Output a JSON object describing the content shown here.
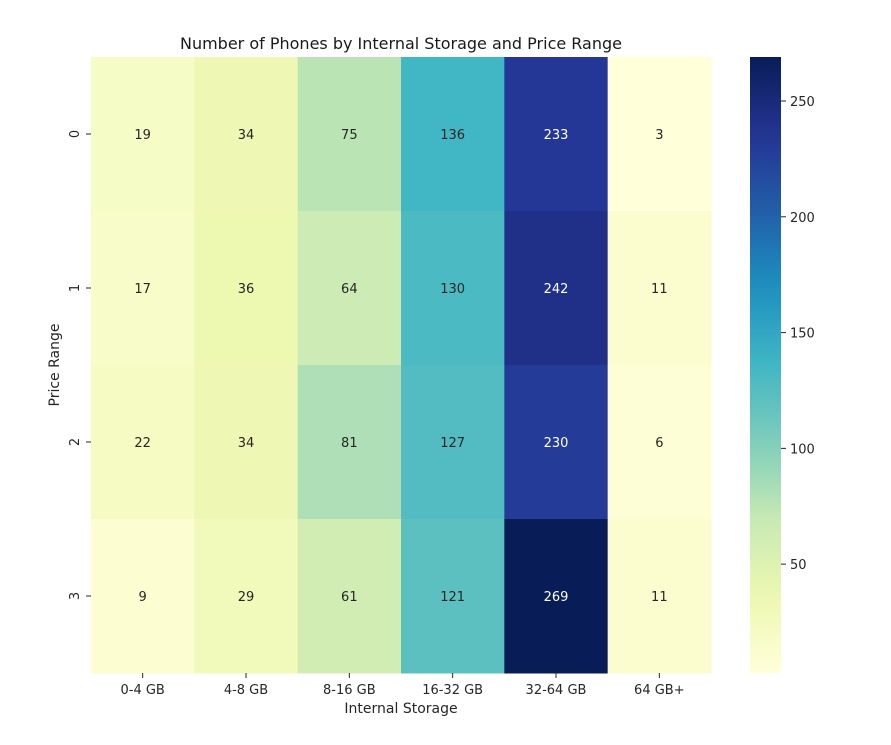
{
  "chart_data": {
    "type": "heatmap",
    "title": "Number of Phones by Internal Storage and Price Range",
    "xlabel": "Internal Storage",
    "ylabel": "Price Range",
    "x_categories": [
      "0-4 GB",
      "4-8 GB",
      "8-16 GB",
      "16-32 GB",
      "32-64 GB",
      "64 GB+"
    ],
    "y_categories": [
      "0",
      "1",
      "2",
      "3"
    ],
    "values": [
      [
        19,
        34,
        75,
        136,
        233,
        3
      ],
      [
        17,
        36,
        64,
        130,
        242,
        11
      ],
      [
        22,
        34,
        81,
        127,
        230,
        6
      ],
      [
        9,
        29,
        61,
        121,
        269,
        11
      ]
    ],
    "colormap": "YlGnBu",
    "vmin": 3,
    "vmax": 269,
    "colorbar_ticks": [
      50,
      100,
      150,
      200,
      250
    ],
    "annotations": true,
    "grid": false
  }
}
